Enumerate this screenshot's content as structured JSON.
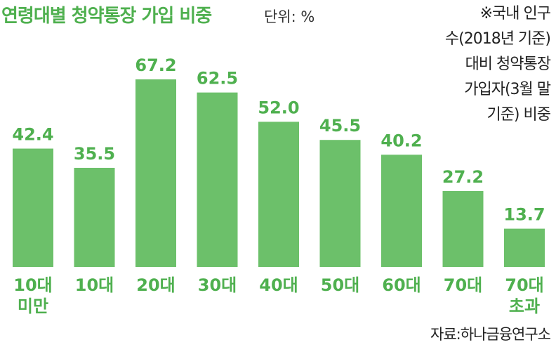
{
  "chart_data": {
    "type": "bar",
    "title": "연령대별 청약통장 가입 비중",
    "unit": "단위: %",
    "categories": [
      [
        "10대",
        "미만"
      ],
      [
        "10대"
      ],
      [
        "20대"
      ],
      [
        "30대"
      ],
      [
        "40대"
      ],
      [
        "50대"
      ],
      [
        "60대"
      ],
      [
        "70대"
      ],
      [
        "70대",
        "초과"
      ]
    ],
    "values": [
      42.4,
      35.5,
      67.2,
      62.5,
      52.0,
      45.5,
      40.2,
      27.2,
      13.7
    ],
    "value_labels": [
      "42.4",
      "35.5",
      "67.2",
      "62.5",
      "52.0",
      "45.5",
      "40.2",
      "27.2",
      "13.7"
    ],
    "ylim": [
      0,
      67.2
    ],
    "bar_color": "#6cc06a",
    "label_color": "#4fb04f",
    "grid": false,
    "note_lines": [
      "※국내 인구",
      "수(2018년 기준)",
      "대비 청약통장",
      "가입자(3월 말",
      "기준) 비중"
    ],
    "source": "자료:하나금융연구소"
  }
}
